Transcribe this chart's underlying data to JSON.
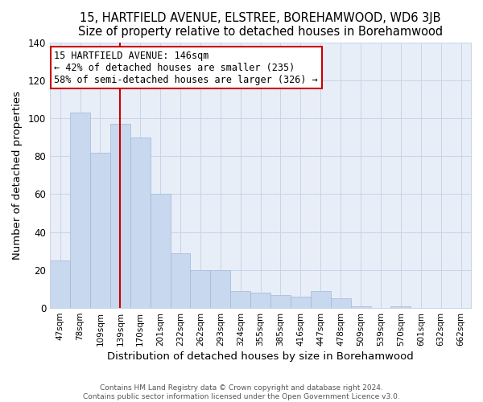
{
  "title": "15, HARTFIELD AVENUE, ELSTREE, BOREHAMWOOD, WD6 3JB",
  "subtitle": "Size of property relative to detached houses in Borehamwood",
  "xlabel": "Distribution of detached houses by size in Borehamwood",
  "ylabel": "Number of detached properties",
  "bar_labels": [
    "47sqm",
    "78sqm",
    "109sqm",
    "139sqm",
    "170sqm",
    "201sqm",
    "232sqm",
    "262sqm",
    "293sqm",
    "324sqm",
    "355sqm",
    "385sqm",
    "416sqm",
    "447sqm",
    "478sqm",
    "509sqm",
    "539sqm",
    "570sqm",
    "601sqm",
    "632sqm",
    "662sqm"
  ],
  "bar_values": [
    25,
    103,
    82,
    97,
    90,
    60,
    29,
    20,
    20,
    9,
    8,
    7,
    6,
    9,
    5,
    1,
    0,
    1,
    0,
    0,
    0
  ],
  "bar_color": "#c8d8ee",
  "bar_edge_color": "#a0b8d8",
  "highlight_index": 3,
  "highlight_color": "#cc0000",
  "annotation_title": "15 HARTFIELD AVENUE: 146sqm",
  "annotation_line1": "← 42% of detached houses are smaller (235)",
  "annotation_line2": "58% of semi-detached houses are larger (326) →",
  "annotation_box_color": "#ffffff",
  "annotation_box_edge": "#cc0000",
  "ylim": [
    0,
    140
  ],
  "yticks": [
    0,
    20,
    40,
    60,
    80,
    100,
    120,
    140
  ],
  "footer1": "Contains HM Land Registry data © Crown copyright and database right 2024.",
  "footer2": "Contains public sector information licensed under the Open Government Licence v3.0.",
  "title_fontsize": 10.5,
  "subtitle_fontsize": 9.5,
  "bg_color": "#e8eef8",
  "grid_color": "#c8d4e8"
}
